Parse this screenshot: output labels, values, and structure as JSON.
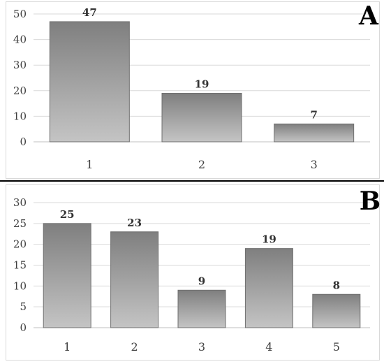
{
  "chart_data": [
    {
      "type": "bar",
      "panel_label": "A",
      "categories": [
        "1",
        "2",
        "3"
      ],
      "values": [
        47,
        19,
        7
      ],
      "ylim": [
        0,
        50
      ],
      "yticks": [
        0,
        10,
        20,
        30,
        40,
        50
      ],
      "grid": true,
      "bar_color": "#8c8c8c"
    },
    {
      "type": "bar",
      "panel_label": "B",
      "categories": [
        "1",
        "2",
        "3",
        "4",
        "5"
      ],
      "values": [
        25,
        23,
        9,
        19,
        8
      ],
      "ylim": [
        0,
        30
      ],
      "yticks": [
        0,
        5,
        10,
        15,
        20,
        25,
        30
      ],
      "grid": true,
      "bar_color": "#8c8c8c"
    }
  ]
}
